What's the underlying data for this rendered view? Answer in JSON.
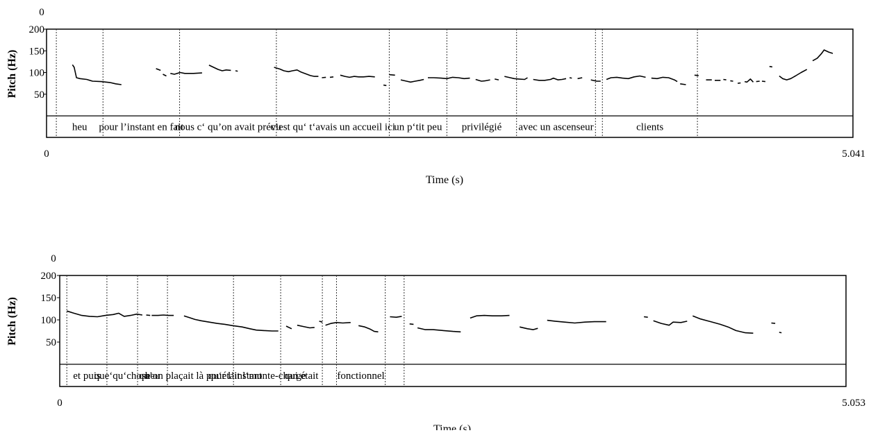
{
  "chart_data": [
    {
      "type": "line",
      "ylabel": "Pitch (Hz)",
      "xlabel": "Time (s)",
      "ylim": [
        0,
        200
      ],
      "yticks": [
        50,
        100,
        150,
        200
      ],
      "ytick_labels": [
        "50",
        "100",
        "150",
        "200"
      ],
      "ymin_label": "0",
      "xlim": [
        0,
        5.041
      ],
      "xmin_label": "0",
      "xmax_label": "5.041",
      "boundaries": [
        0.17,
        0.98,
        1.27,
        2.31,
        3.99,
        4.95,
        6.16,
        7.37,
        9.53,
        9.65
      ],
      "segments": [
        {
          "label": "heu",
          "start": 0.17,
          "end": 0.98
        },
        {
          "label": "pour l’instant en fait",
          "start": 0.98,
          "end": 2.31
        },
        {
          "label": "nous c‘ qu’on avait prévu",
          "start": 2.31,
          "end": 3.99
        },
        {
          "label": "c’est qu‘ t‘avais un accueil ici",
          "start": 3.99,
          "end": 5.95
        },
        {
          "label": "un p‘tit peu",
          "start": 5.95,
          "end": 6.95
        },
        {
          "label": "privilégié",
          "start": 6.95,
          "end": 8.16
        },
        {
          "label": "avec un ascenseur",
          "start": 8.16,
          "end": 9.53
        },
        {
          "label": "",
          "start": 9.53,
          "end": 9.65
        },
        {
          "label": "clients",
          "start": 9.65,
          "end": 11.3
        }
      ],
      "pitch": [
        [
          [
            0.45,
            118
          ],
          [
            0.48,
            112
          ],
          [
            0.52,
            88
          ],
          [
            0.58,
            86
          ],
          [
            0.7,
            84
          ],
          [
            0.8,
            80
          ],
          [
            0.95,
            79
          ],
          [
            1.1,
            77
          ],
          [
            1.2,
            74
          ],
          [
            1.3,
            72
          ]
        ],
        [
          [
            1.9,
            109
          ],
          [
            1.98,
            105
          ]
        ],
        [
          [
            2.02,
            96
          ],
          [
            2.08,
            92
          ]
        ],
        [
          [
            2.15,
            98
          ],
          [
            2.22,
            96
          ],
          [
            2.32,
            100
          ],
          [
            2.4,
            98
          ],
          [
            2.55,
            98
          ],
          [
            2.7,
            99
          ]
        ],
        [
          [
            2.82,
            117
          ],
          [
            2.9,
            112
          ],
          [
            2.98,
            107
          ],
          [
            3.05,
            104
          ],
          [
            3.12,
            106
          ],
          [
            3.2,
            105
          ]
        ],
        [
          [
            3.28,
            104
          ],
          [
            3.32,
            103
          ]
        ],
        [
          [
            3.95,
            112
          ],
          [
            4.05,
            108
          ],
          [
            4.12,
            104
          ],
          [
            4.2,
            102
          ],
          [
            4.27,
            104
          ],
          [
            4.35,
            106
          ],
          [
            4.42,
            101
          ],
          [
            4.5,
            97
          ],
          [
            4.58,
            93
          ],
          [
            4.65,
            91
          ],
          [
            4.72,
            91
          ]
        ],
        [
          [
            4.78,
            88
          ],
          [
            4.85,
            89
          ]
        ],
        [
          [
            4.92,
            89
          ],
          [
            4.98,
            90
          ]
        ],
        [
          [
            5.1,
            94
          ],
          [
            5.18,
            91
          ],
          [
            5.26,
            89
          ],
          [
            5.34,
            91
          ],
          [
            5.42,
            90
          ],
          [
            5.5,
            90
          ],
          [
            5.6,
            91
          ],
          [
            5.7,
            90
          ]
        ],
        [
          [
            5.85,
            71
          ],
          [
            5.9,
            70
          ]
        ],
        [
          [
            5.95,
            95
          ],
          [
            6.05,
            94
          ]
        ],
        [
          [
            6.15,
            83
          ],
          [
            6.25,
            80
          ],
          [
            6.32,
            78
          ],
          [
            6.4,
            80
          ],
          [
            6.48,
            82
          ],
          [
            6.55,
            84
          ]
        ],
        [
          [
            6.62,
            88
          ],
          [
            6.72,
            88
          ],
          [
            6.85,
            87
          ],
          [
            6.95,
            86
          ],
          [
            7.05,
            89
          ],
          [
            7.15,
            88
          ],
          [
            7.25,
            86
          ],
          [
            7.35,
            87
          ]
        ],
        [
          [
            7.45,
            84
          ],
          [
            7.55,
            80
          ],
          [
            7.62,
            81
          ],
          [
            7.7,
            83
          ]
        ],
        [
          [
            7.78,
            85
          ],
          [
            7.85,
            83
          ]
        ],
        [
          [
            7.95,
            91
          ],
          [
            8.05,
            88
          ],
          [
            8.12,
            86
          ],
          [
            8.2,
            85
          ],
          [
            8.3,
            84
          ],
          [
            8.35,
            88
          ]
        ],
        [
          [
            8.45,
            84
          ],
          [
            8.55,
            82
          ],
          [
            8.65,
            82
          ],
          [
            8.75,
            84
          ],
          [
            8.8,
            87
          ],
          [
            8.88,
            83
          ],
          [
            8.95,
            84
          ],
          [
            9.02,
            86
          ]
        ],
        [
          [
            9.08,
            88
          ],
          [
            9.12,
            87
          ]
        ],
        [
          [
            9.22,
            86
          ],
          [
            9.3,
            88
          ]
        ],
        [
          [
            9.45,
            83
          ],
          [
            9.55,
            80
          ],
          [
            9.62,
            80
          ]
        ],
        [
          [
            9.72,
            84
          ],
          [
            9.8,
            88
          ],
          [
            9.9,
            89
          ],
          [
            10.0,
            87
          ],
          [
            10.1,
            86
          ],
          [
            10.2,
            90
          ],
          [
            10.3,
            92
          ],
          [
            10.4,
            89
          ]
        ],
        [
          [
            10.5,
            87
          ],
          [
            10.6,
            86
          ],
          [
            10.7,
            89
          ],
          [
            10.8,
            88
          ],
          [
            10.9,
            83
          ],
          [
            10.95,
            79
          ]
        ],
        [
          [
            11.0,
            74
          ],
          [
            11.1,
            72
          ]
        ],
        [
          [
            11.25,
            94
          ],
          [
            11.32,
            93
          ]
        ],
        [
          [
            11.45,
            83
          ],
          [
            11.55,
            83
          ]
        ],
        [
          [
            11.6,
            82
          ],
          [
            11.7,
            82
          ]
        ],
        [
          [
            11.75,
            84
          ],
          [
            11.8,
            83
          ]
        ],
        [
          [
            11.87,
            81
          ],
          [
            11.92,
            80
          ]
        ],
        [
          [
            12.0,
            75
          ],
          [
            12.05,
            76
          ]
        ],
        [
          [
            12.12,
            79
          ],
          [
            12.16,
            78
          ],
          [
            12.22,
            85
          ],
          [
            12.27,
            78
          ]
        ],
        [
          [
            12.32,
            79
          ],
          [
            12.38,
            80
          ]
        ],
        [
          [
            12.42,
            80
          ],
          [
            12.48,
            79
          ]
        ],
        [
          [
            12.55,
            114
          ],
          [
            12.6,
            113
          ]
        ],
        [
          [
            12.72,
            92
          ],
          [
            12.78,
            86
          ],
          [
            12.85,
            83
          ],
          [
            12.92,
            86
          ],
          [
            13.0,
            92
          ],
          [
            13.1,
            100
          ],
          [
            13.2,
            107
          ]
        ],
        [
          [
            13.3,
            127
          ],
          [
            13.38,
            133
          ],
          [
            13.45,
            143
          ],
          [
            13.5,
            152
          ],
          [
            13.58,
            147
          ],
          [
            13.65,
            144
          ]
        ]
      ]
    },
    {
      "type": "line",
      "ylabel": "Pitch (Hz)",
      "xlabel": "Time (s)",
      "ylim": [
        0,
        200
      ],
      "yticks": [
        50,
        100,
        150,
        200
      ],
      "ytick_labels": [
        "50",
        "100",
        "150",
        "200"
      ],
      "ymin_label": "0",
      "xlim": [
        0,
        5.053
      ],
      "xmin_label": "0",
      "xmax_label": "5.053",
      "segments": [
        {
          "label": "et puis",
          "start": 0.09,
          "end": 0.6
        },
        {
          "label": "que‘qu‘chose",
          "start": 0.6,
          "end": 0.99
        },
        {
          "label": "heu",
          "start": 0.99,
          "end": 1.37
        },
        {
          "label": "qu’on plaçait là pour l’instant",
          "start": 1.37,
          "end": 2.21
        },
        {
          "label": "qu‘était l‘monte-charge",
          "start": 2.21,
          "end": 2.81
        },
        {
          "label": "qui était",
          "start": 2.81,
          "end": 3.34
        },
        {
          "label": "",
          "start": 3.34,
          "end": 3.52
        },
        {
          "label": "fonctionnel",
          "start": 3.52,
          "end": 4.14
        },
        {
          "label": "",
          "start": 4.14,
          "end": 4.38
        }
      ],
      "pitch": [
        [
          [
            0.09,
            120
          ],
          [
            0.18,
            115
          ],
          [
            0.28,
            110
          ],
          [
            0.38,
            108
          ],
          [
            0.48,
            107
          ],
          [
            0.58,
            110
          ],
          [
            0.68,
            112
          ],
          [
            0.75,
            115
          ],
          [
            0.82,
            108
          ],
          [
            0.9,
            110
          ],
          [
            0.98,
            113
          ],
          [
            1.05,
            111
          ]
        ],
        [
          [
            1.1,
            111
          ],
          [
            1.15,
            110
          ]
        ],
        [
          [
            1.17,
            110
          ],
          [
            1.25,
            110
          ],
          [
            1.32,
            111
          ],
          [
            1.38,
            110
          ],
          [
            1.45,
            110
          ]
        ],
        [
          [
            1.58,
            109
          ],
          [
            1.65,
            105
          ],
          [
            1.72,
            101
          ],
          [
            1.8,
            98
          ],
          [
            1.9,
            95
          ],
          [
            2.0,
            92
          ],
          [
            2.1,
            90
          ],
          [
            2.2,
            87
          ],
          [
            2.32,
            84
          ],
          [
            2.42,
            80
          ],
          [
            2.5,
            77
          ],
          [
            2.6,
            76
          ],
          [
            2.7,
            75
          ],
          [
            2.78,
            75
          ]
        ],
        [
          [
            2.88,
            86
          ],
          [
            2.95,
            80
          ]
        ],
        [
          [
            3.02,
            88
          ],
          [
            3.1,
            85
          ],
          [
            3.18,
            82
          ],
          [
            3.24,
            83
          ]
        ],
        [
          [
            3.3,
            97
          ],
          [
            3.34,
            95
          ]
        ],
        [
          [
            3.38,
            88
          ],
          [
            3.45,
            92
          ],
          [
            3.52,
            94
          ],
          [
            3.6,
            93
          ],
          [
            3.7,
            94
          ]
        ],
        [
          [
            3.8,
            87
          ],
          [
            3.88,
            84
          ],
          [
            3.95,
            79
          ],
          [
            4.0,
            74
          ],
          [
            4.05,
            73
          ]
        ],
        [
          [
            4.2,
            107
          ],
          [
            4.28,
            106
          ],
          [
            4.35,
            108
          ]
        ],
        [
          [
            4.45,
            91
          ],
          [
            4.5,
            90
          ]
        ],
        [
          [
            4.55,
            82
          ],
          [
            4.65,
            78
          ],
          [
            4.75,
            78
          ],
          [
            4.88,
            76
          ],
          [
            5.0,
            74
          ],
          [
            5.1,
            73
          ]
        ],
        [
          [
            5.22,
            104
          ],
          [
            5.3,
            109
          ],
          [
            5.4,
            110
          ],
          [
            5.5,
            109
          ],
          [
            5.62,
            109
          ],
          [
            5.72,
            110
          ]
        ],
        [
          [
            5.85,
            84
          ],
          [
            5.95,
            80
          ],
          [
            6.02,
            78
          ],
          [
            6.08,
            81
          ]
        ],
        [
          [
            6.2,
            99
          ],
          [
            6.3,
            97
          ],
          [
            6.42,
            95
          ],
          [
            6.55,
            93
          ],
          [
            6.68,
            95
          ],
          [
            6.8,
            96
          ],
          [
            6.95,
            96
          ]
        ],
        [
          [
            7.43,
            107
          ],
          [
            7.48,
            106
          ]
        ],
        [
          [
            7.55,
            98
          ],
          [
            7.65,
            92
          ],
          [
            7.75,
            88
          ],
          [
            7.8,
            95
          ],
          [
            7.9,
            94
          ],
          [
            7.98,
            97
          ]
        ],
        [
          [
            8.05,
            109
          ],
          [
            8.15,
            102
          ],
          [
            8.28,
            96
          ],
          [
            8.4,
            90
          ],
          [
            8.5,
            84
          ],
          [
            8.6,
            76
          ],
          [
            8.72,
            71
          ],
          [
            8.82,
            70
          ]
        ],
        [
          [
            9.05,
            93
          ],
          [
            9.1,
            92
          ]
        ],
        [
          [
            9.15,
            72
          ],
          [
            9.18,
            71
          ]
        ]
      ]
    }
  ]
}
